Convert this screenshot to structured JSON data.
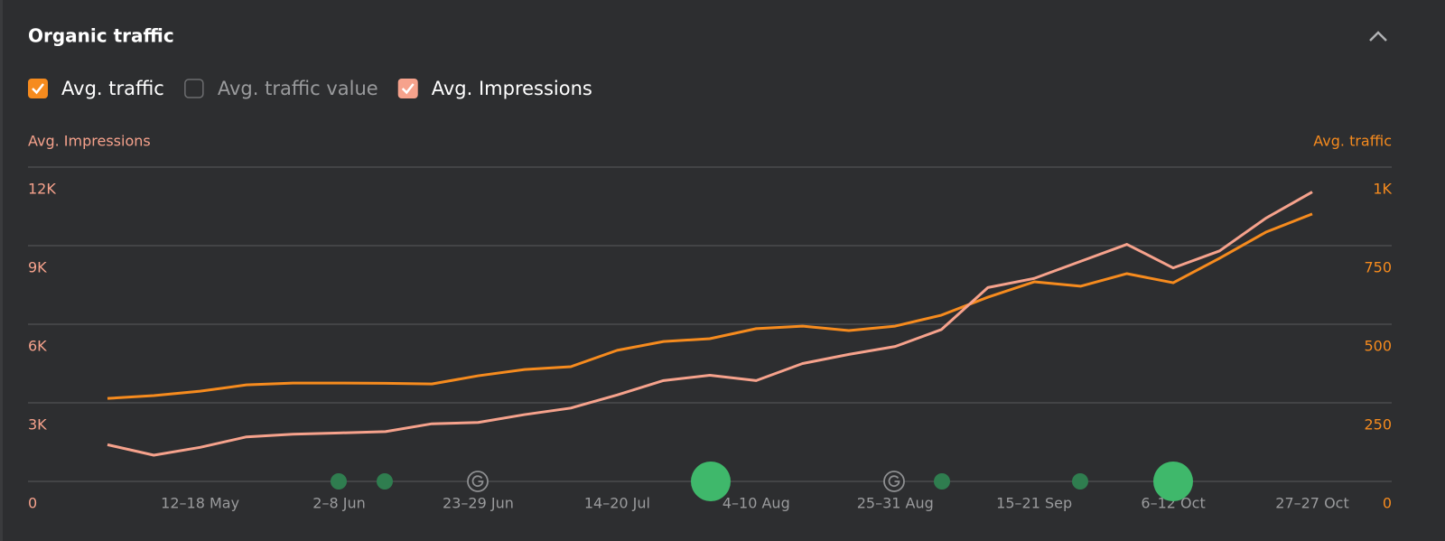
{
  "chart_data": {
    "type": "line",
    "title": "Organic traffic",
    "toggles": [
      {
        "label": "Avg. traffic",
        "checked": true,
        "color": "#f68b1e"
      },
      {
        "label": "Avg. traffic value",
        "checked": false
      },
      {
        "label": "Avg. Impressions",
        "checked": true,
        "color": "#f6a28c"
      }
    ],
    "y_label": "Avg. Impressions",
    "y2_label": "Avg. traffic",
    "categories": [
      null,
      null,
      "12–18 May",
      null,
      null,
      "2–8 Jun",
      null,
      null,
      "23–29 Jun",
      null,
      null,
      "14–20 Jul",
      null,
      null,
      "4–10 Aug",
      null,
      null,
      "25–31 Aug",
      null,
      null,
      "15–21 Sep",
      null,
      null,
      "6–12 Oct",
      null,
      null,
      "27–27 Oct"
    ],
    "series": [
      {
        "name": "Avg. traffic",
        "color": "#f68b1e",
        "axis": "y2",
        "values": [
          264,
          273,
          287,
          307,
          313,
          313,
          312,
          310,
          336,
          356,
          365,
          417,
          445,
          454,
          486,
          494,
          480,
          494,
          529,
          586,
          635,
          621,
          661,
          632,
          710,
          793,
          851
        ]
      },
      {
        "name": "Avg. Impressions",
        "color": "#f6a28c",
        "values": [
          1400,
          1000,
          1300,
          1700,
          1800,
          1850,
          1900,
          2200,
          2250,
          2550,
          2800,
          3300,
          3850,
          4050,
          3850,
          4500,
          4850,
          5150,
          5800,
          7400,
          7750,
          8400,
          9050,
          8150,
          8800,
          10050,
          11050
        ]
      }
    ],
    "ylim": [
      0,
      12000
    ],
    "yticks": [
      0,
      {
        "value": 3000,
        "label": "3K"
      },
      {
        "value": 6000,
        "label": "6K"
      },
      {
        "value": 9000,
        "label": "9K"
      },
      {
        "value": 12000,
        "label": "12K"
      }
    ],
    "y2lim": [
      0,
      1000
    ],
    "y2ticks": [
      0,
      250,
      500,
      750,
      {
        "value": 1000,
        "label": "1K"
      }
    ],
    "grid": true
  }
}
